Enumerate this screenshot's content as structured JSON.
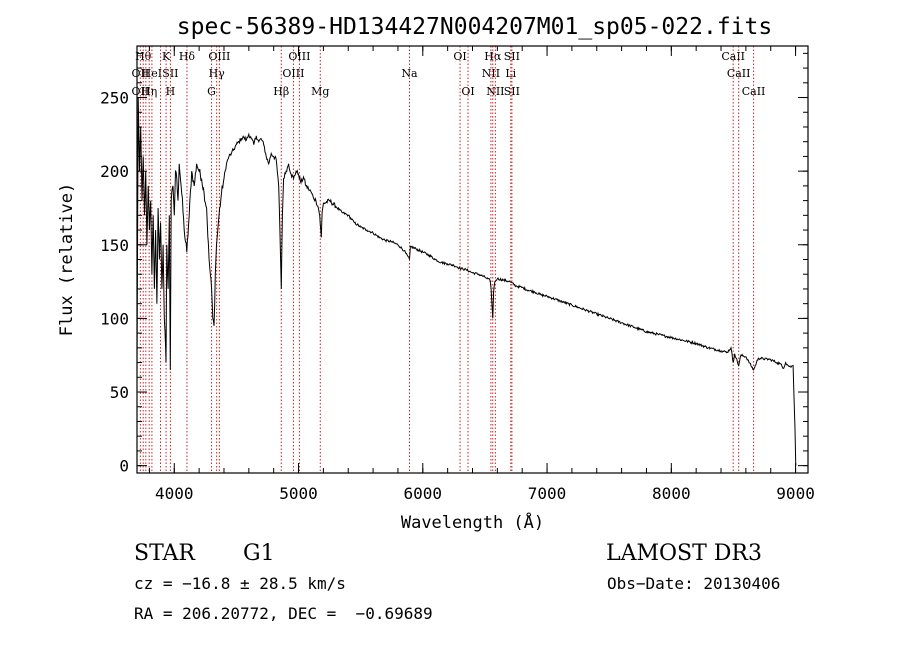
{
  "chart_data": {
    "type": "line",
    "title": "spec-56389-HD134427N004207M01_sp05-022.fits",
    "xlabel": "Wavelength (Å)",
    "ylabel": "Flux (relative)",
    "xlim": [
      3700,
      9100
    ],
    "ylim": [
      -5,
      285
    ],
    "x_ticks": [
      4000,
      5000,
      6000,
      7000,
      8000,
      9000
    ],
    "y_ticks": [
      0,
      50,
      100,
      150,
      200,
      250
    ],
    "x_minor_step": 200,
    "y_minor_step": 10,
    "series": [
      {
        "name": "spectrum",
        "x": [
          3700,
          3710,
          3720,
          3730,
          3740,
          3750,
          3760,
          3770,
          3780,
          3790,
          3800,
          3810,
          3820,
          3830,
          3840,
          3850,
          3860,
          3870,
          3880,
          3890,
          3900,
          3910,
          3920,
          3930,
          3933,
          3940,
          3950,
          3960,
          3968,
          3975,
          3990,
          4000,
          4010,
          4020,
          4030,
          4040,
          4060,
          4080,
          4101,
          4120,
          4140,
          4160,
          4180,
          4200,
          4220,
          4240,
          4260,
          4280,
          4300,
          4310,
          4320,
          4330,
          4340,
          4350,
          4360,
          4380,
          4400,
          4420,
          4440,
          4460,
          4480,
          4500,
          4520,
          4540,
          4560,
          4580,
          4600,
          4620,
          4640,
          4660,
          4680,
          4700,
          4720,
          4740,
          4760,
          4780,
          4800,
          4820,
          4840,
          4850,
          4861,
          4870,
          4880,
          4900,
          4920,
          4940,
          4960,
          4980,
          5000,
          5020,
          5040,
          5060,
          5080,
          5100,
          5120,
          5140,
          5160,
          5170,
          5183,
          5190,
          5200,
          5250,
          5300,
          5350,
          5400,
          5450,
          5500,
          5550,
          5600,
          5650,
          5700,
          5750,
          5800,
          5850,
          5893,
          5900,
          5950,
          6000,
          6050,
          6100,
          6150,
          6200,
          6250,
          6300,
          6350,
          6400,
          6450,
          6500,
          6540,
          6550,
          6563,
          6570,
          6580,
          6600,
          6650,
          6700,
          6750,
          6800,
          6850,
          6900,
          6950,
          7000,
          7100,
          7200,
          7300,
          7400,
          7500,
          7600,
          7700,
          7800,
          7900,
          8000,
          8100,
          8200,
          8300,
          8400,
          8450,
          8480,
          8498,
          8510,
          8542,
          8560,
          8600,
          8662,
          8700,
          8800,
          8850,
          8880,
          8900,
          8920,
          8940,
          8960,
          8980,
          8990,
          8995,
          9000,
          9002
        ],
        "y": [
          65,
          250,
          200,
          230,
          180,
          210,
          170,
          200,
          150,
          190,
          160,
          180,
          130,
          170,
          120,
          160,
          110,
          175,
          140,
          165,
          120,
          150,
          100,
          80,
          70,
          150,
          120,
          170,
          65,
          180,
          190,
          170,
          200,
          195,
          180,
          205,
          185,
          160,
          145,
          170,
          200,
          190,
          205,
          200,
          195,
          185,
          175,
          140,
          120,
          100,
          95,
          130,
          150,
          160,
          170,
          185,
          195,
          205,
          210,
          212,
          215,
          218,
          220,
          222,
          223,
          221,
          225,
          222,
          218,
          224,
          220,
          222,
          218,
          210,
          205,
          212,
          210,
          208,
          190,
          160,
          120,
          170,
          195,
          200,
          205,
          198,
          195,
          200,
          198,
          192,
          196,
          190,
          188,
          186,
          182,
          180,
          175,
          170,
          155,
          172,
          178,
          180,
          176,
          172,
          170,
          165,
          162,
          160,
          158,
          155,
          153,
          152,
          150,
          146,
          140,
          149,
          147,
          145,
          143,
          140,
          138,
          137,
          136,
          134,
          133,
          131,
          130,
          128,
          126,
          120,
          100,
          118,
          125,
          127,
          126,
          125,
          122,
          121,
          119,
          118,
          116,
          115,
          112,
          109,
          106,
          103,
          100,
          97,
          94,
          91,
          89,
          87,
          85,
          83,
          80,
          78,
          77,
          80,
          70,
          76,
          68,
          75,
          74,
          65,
          73,
          72,
          70,
          69,
          66,
          70,
          68,
          67,
          68,
          40,
          25,
          5,
          0
        ]
      }
    ],
    "lines": [
      {
        "wl": 3727,
        "labels": [
          {
            "text": "OII",
            "row": 2
          },
          {
            "text": "OII",
            "row": 1
          }
        ]
      },
      {
        "wl": 3750,
        "labels": [
          {
            "text": "Hθ",
            "row": 0
          }
        ]
      },
      {
        "wl": 3771,
        "labels": []
      },
      {
        "wl": 3798,
        "labels": [
          {
            "text": "Hη",
            "row": 2
          }
        ]
      },
      {
        "wl": 3820,
        "labels": [
          {
            "text": "HeI",
            "row": 1
          }
        ]
      },
      {
        "wl": 3889,
        "labels": []
      },
      {
        "wl": 3934,
        "labels": [
          {
            "text": "K",
            "row": 0
          }
        ]
      },
      {
        "wl": 3969,
        "labels": [
          {
            "text": "H",
            "row": 2
          },
          {
            "text": "SII",
            "row": 1
          }
        ]
      },
      {
        "wl": 4102,
        "labels": [
          {
            "text": "Hδ",
            "row": 0
          }
        ]
      },
      {
        "wl": 4300,
        "labels": [
          {
            "text": "G",
            "row": 2
          }
        ]
      },
      {
        "wl": 4341,
        "labels": [
          {
            "text": "Hγ",
            "row": 1
          }
        ]
      },
      {
        "wl": 4363,
        "labels": [
          {
            "text": "OIII",
            "row": 0
          }
        ]
      },
      {
        "wl": 4861,
        "labels": [
          {
            "text": "Hβ",
            "row": 2
          }
        ]
      },
      {
        "wl": 4959,
        "labels": [
          {
            "text": "OIII",
            "row": 1
          }
        ]
      },
      {
        "wl": 5007,
        "labels": [
          {
            "text": "OIII",
            "row": 0
          }
        ]
      },
      {
        "wl": 5175,
        "labels": [
          {
            "text": "Mg",
            "row": 2
          }
        ]
      },
      {
        "wl": 5893,
        "labels": [
          {
            "text": "Na",
            "row": 1
          }
        ]
      },
      {
        "wl": 6300,
        "labels": [
          {
            "text": "OI",
            "row": 0
          }
        ]
      },
      {
        "wl": 6364,
        "labels": [
          {
            "text": "OI",
            "row": 2
          }
        ]
      },
      {
        "wl": 6548,
        "labels": [
          {
            "text": "NII",
            "row": 1
          }
        ]
      },
      {
        "wl": 6563,
        "labels": [
          {
            "text": "Hα",
            "row": 0
          }
        ]
      },
      {
        "wl": 6584,
        "labels": [
          {
            "text": "NII",
            "row": 2
          }
        ]
      },
      {
        "wl": 6708,
        "labels": [
          {
            "text": "Li",
            "row": 1
          }
        ]
      },
      {
        "wl": 6717,
        "labels": [
          {
            "text": "SII",
            "row": 0
          },
          {
            "text": "SII",
            "row": 2
          }
        ]
      },
      {
        "wl": 8498,
        "labels": [
          {
            "text": "CaII",
            "row": 0
          }
        ]
      },
      {
        "wl": 8542,
        "labels": [
          {
            "text": "CaII",
            "row": 1
          }
        ]
      },
      {
        "wl": 8662,
        "labels": [
          {
            "text": "CaII",
            "row": 2
          }
        ]
      }
    ]
  },
  "info": {
    "object_class": "STAR",
    "subclass": "G1",
    "survey": "LAMOST DR3",
    "cz": "cz = −16.8 ± 28.5 km/s",
    "obs_date": "Obs−Date: 20130406",
    "coords": "RA = 206.20772, DEC =  −0.69689"
  },
  "colors": {
    "spectrum": "#000000",
    "line_marker": "#cc2222",
    "axis": "#000000"
  }
}
